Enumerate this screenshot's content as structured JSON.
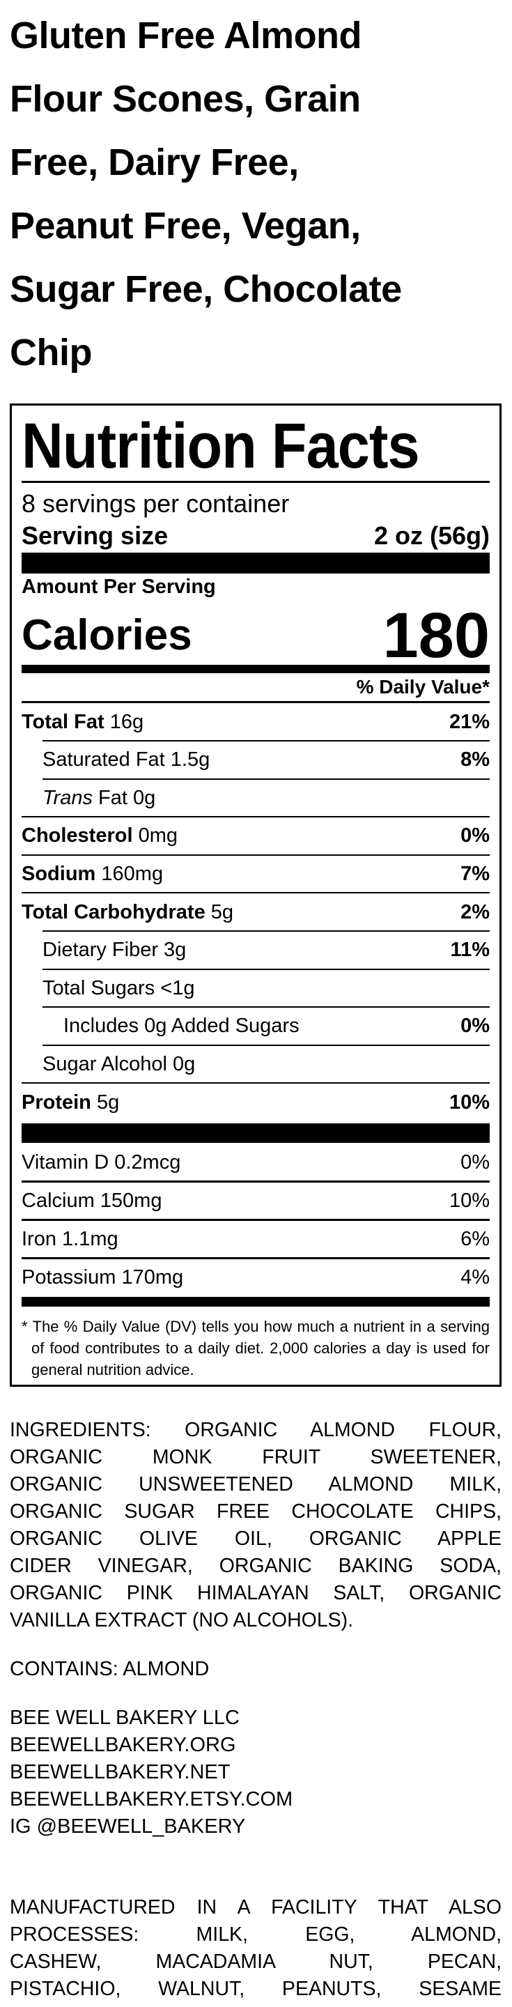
{
  "product_title_lines": [
    "Gluten Free Almond",
    "Flour Scones, Grain",
    "Free, Dairy Free,",
    "Peanut Free, Vegan,",
    "Sugar Free, Chocolate",
    "Chip"
  ],
  "nutrition": {
    "title": "Nutrition Facts",
    "servings_per_container": "8 servings per container",
    "serving_size_label": "Serving size",
    "serving_size_value": "2 oz (56g)",
    "amount_per_serving": "Amount Per Serving",
    "calories_label": "Calories",
    "calories_value": "180",
    "daily_value_header": "% Daily Value*",
    "rows": [
      {
        "label": "Total Fat",
        "amount": "16g",
        "dv": "21%"
      },
      {
        "label": "Saturated Fat 1.5g",
        "amount": "",
        "dv": "8%"
      },
      {
        "label": "Trans",
        "amount": "Fat 0g",
        "dv": ""
      },
      {
        "label": "Cholesterol",
        "amount": "0mg",
        "dv": "0%"
      },
      {
        "label": "Sodium",
        "amount": "160mg",
        "dv": "7%"
      },
      {
        "label": "Total Carbohydrate",
        "amount": "5g",
        "dv": "2%"
      },
      {
        "label": "Dietary Fiber 3g",
        "amount": "",
        "dv": "11%"
      },
      {
        "label": "Total Sugars <1g",
        "amount": "",
        "dv": ""
      },
      {
        "label": "Includes 0g Added Sugars",
        "amount": "",
        "dv": "0%"
      },
      {
        "label": "Sugar Alcohol 0g",
        "amount": "",
        "dv": ""
      },
      {
        "label": "Protein",
        "amount": "5g",
        "dv": "10%"
      }
    ],
    "vitamins": [
      {
        "label": "Vitamin D 0.2mcg",
        "dv": "0%"
      },
      {
        "label": "Calcium 150mg",
        "dv": "10%"
      },
      {
        "label": "Iron 1.1mg",
        "dv": "6%"
      },
      {
        "label": "Potassium 170mg",
        "dv": "4%"
      }
    ],
    "footnote": "* The % Daily Value (DV) tells you how much a nutrient in a serving of food contributes to a daily diet. 2,000 calories a day is used for general nutrition advice."
  },
  "ingredients_lines": [
    "INGREDIENTS: ORGANIC ALMOND FLOUR,",
    "ORGANIC MONK FRUIT SWEETENER,",
    "ORGANIC UNSWEETENED ALMOND MILK,",
    "ORGANIC SUGAR FREE CHOCOLATE CHIPS,",
    "ORGANIC OLIVE OIL, ORGANIC APPLE",
    "CIDER VINEGAR, ORGANIC BAKING SODA,",
    "ORGANIC PINK HIMALAYAN SALT, ORGANIC",
    "VANILLA EXTRACT (NO ALCOHOLS)."
  ],
  "contains": "CONTAINS: ALMOND",
  "company_lines": [
    "BEE WELL BAKERY LLC",
    "BEEWELLBAKERY.ORG",
    "BEEWELLBAKERY.NET",
    "BEEWELLBAKERY.ETSY.COM",
    "IG @BEEWELL_BAKERY"
  ],
  "facility_lines": [
    "MANUFACTURED IN A FACILITY THAT ALSO",
    "PROCESSES: MILK, EGG, ALMOND,",
    "CASHEW, MACADAMIA NUT, PECAN,",
    "PISTACHIO, WALNUT, PEANUTS, SESAME"
  ]
}
